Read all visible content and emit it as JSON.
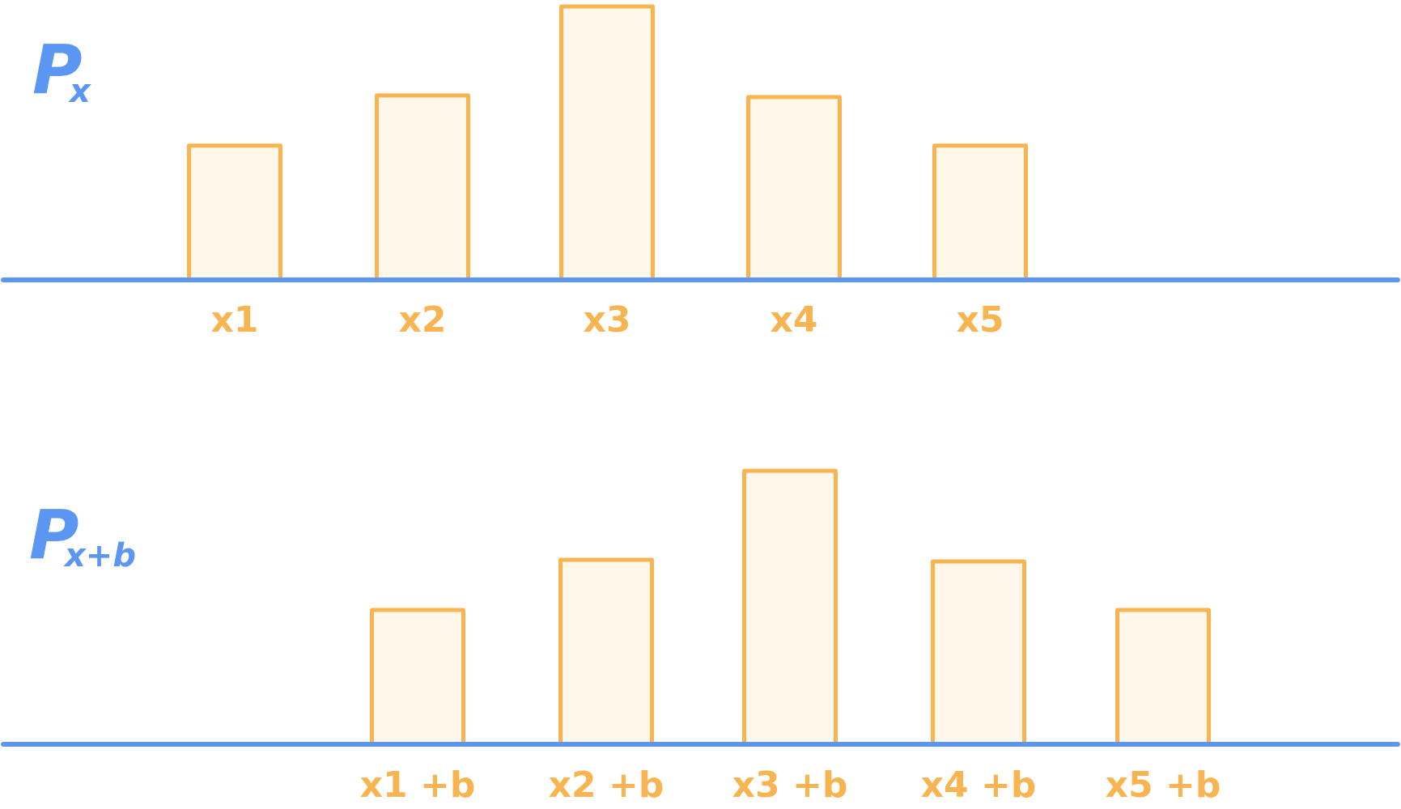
{
  "chart_data": [
    {
      "type": "bar",
      "ylabel": {
        "main": "P",
        "sub": "x"
      },
      "categories": [
        "x1",
        "x2",
        "x3",
        "x4",
        "x5"
      ],
      "values": [
        166,
        228,
        338,
        226,
        166
      ],
      "ylim": [
        0,
        345
      ],
      "grid": false,
      "colors": {
        "bar_fill": "#fef7ea",
        "bar_stroke": "#f8b451",
        "axis": "#5b96f2",
        "label": "#5b96f2"
      }
    },
    {
      "type": "bar",
      "ylabel": {
        "main": "P",
        "sub": "x+b"
      },
      "categories": [
        "x1 +b",
        "x2 +b",
        "x3 +b",
        "x4 +b",
        "x5 +b"
      ],
      "values": [
        166,
        228,
        338,
        226,
        166
      ],
      "ylim": [
        0,
        345
      ],
      "grid": false,
      "colors": {
        "bar_fill": "#fef7ea",
        "bar_stroke": "#f8b451",
        "axis": "#5b96f2",
        "label": "#5b96f2"
      }
    }
  ]
}
